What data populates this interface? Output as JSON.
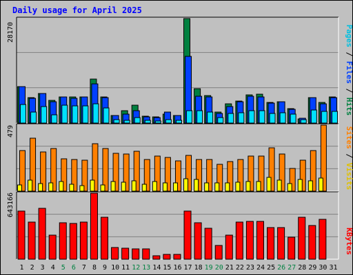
{
  "chart_data": [
    {
      "type": "bar",
      "title": "Daily usage for April 2025",
      "categories": [
        "1",
        "2",
        "3",
        "4",
        "5",
        "6",
        "7",
        "8",
        "9",
        "10",
        "11",
        "12",
        "13",
        "14",
        "15",
        "16",
        "17",
        "18",
        "19",
        "20",
        "21",
        "22",
        "23",
        "24",
        "25",
        "26",
        "27",
        "28",
        "29",
        "30",
        "31"
      ],
      "weekend_days": [
        "5",
        "6",
        "12",
        "13",
        "19",
        "20",
        "26",
        "27"
      ],
      "ylabel_parts": [
        "Pages",
        "Files",
        "Hits"
      ],
      "ymax_label": "28170",
      "ylim": [
        0,
        28170
      ],
      "grid": true,
      "series": [
        {
          "name": "Hits",
          "color": "#008040",
          "values": [
            9800,
            6800,
            7900,
            6100,
            7000,
            7000,
            7000,
            11800,
            7000,
            2100,
            3400,
            4800,
            1900,
            1700,
            2500,
            2100,
            28170,
            9300,
            7400,
            2900,
            5100,
            6000,
            7600,
            7800,
            5500,
            5800,
            3800,
            1200,
            6800,
            5500,
            7000
          ]
        },
        {
          "name": "Files",
          "color": "#0040ff",
          "values": [
            9800,
            6600,
            7900,
            5800,
            7000,
            6700,
            7000,
            10600,
            6800,
            2000,
            2500,
            3300,
            1700,
            1500,
            2900,
            2100,
            18000,
            7200,
            7100,
            2600,
            4400,
            5700,
            7300,
            7000,
            5300,
            5700,
            3700,
            1300,
            6800,
            5200,
            6800
          ]
        },
        {
          "name": "Pages",
          "color": "#00e0ff",
          "values": [
            5000,
            2900,
            4500,
            2200,
            4900,
            4600,
            4600,
            5100,
            4000,
            900,
            700,
            1500,
            700,
            600,
            900,
            700,
            3300,
            3300,
            3000,
            1500,
            2600,
            2700,
            3300,
            3400,
            2600,
            2700,
            2400,
            1000,
            3600,
            3200,
            3200
          ]
        }
      ]
    },
    {
      "type": "bar",
      "categories": [
        "1",
        "2",
        "3",
        "4",
        "5",
        "6",
        "7",
        "8",
        "9",
        "10",
        "11",
        "12",
        "13",
        "14",
        "15",
        "16",
        "17",
        "18",
        "19",
        "20",
        "21",
        "22",
        "23",
        "24",
        "25",
        "26",
        "27",
        "28",
        "29",
        "30",
        "31"
      ],
      "ylabel_parts": [
        "Sites",
        "Visits"
      ],
      "ymax_label": "479",
      "ylim": [
        0,
        479
      ],
      "grid": true,
      "series": [
        {
          "name": "Visits",
          "color": "#ff8000",
          "values": [
            295,
            385,
            285,
            310,
            235,
            230,
            225,
            345,
            310,
            275,
            270,
            290,
            230,
            255,
            245,
            220,
            260,
            230,
            230,
            195,
            215,
            230,
            255,
            255,
            315,
            270,
            165,
            225,
            295,
            479,
            0
          ]
        },
        {
          "name": "Sites",
          "color": "#ffff00",
          "values": [
            45,
            78,
            55,
            62,
            68,
            48,
            38,
            78,
            45,
            72,
            65,
            75,
            48,
            72,
            60,
            58,
            92,
            85,
            62,
            58,
            62,
            65,
            68,
            72,
            98,
            80,
            55,
            85,
            75,
            95,
            0
          ]
        }
      ]
    },
    {
      "type": "bar",
      "categories": [
        "1",
        "2",
        "3",
        "4",
        "5",
        "6",
        "7",
        "8",
        "9",
        "10",
        "11",
        "12",
        "13",
        "14",
        "15",
        "16",
        "17",
        "18",
        "19",
        "20",
        "21",
        "22",
        "23",
        "24",
        "25",
        "26",
        "27",
        "28",
        "29",
        "30",
        "31"
      ],
      "ylabel": "KBytes",
      "ymax_label": "643166",
      "ylim": [
        0,
        643166
      ],
      "grid": true,
      "series": [
        {
          "name": "KBytes",
          "color": "#ff0000",
          "values": [
            466000,
            360000,
            497000,
            235000,
            354000,
            350000,
            360000,
            643166,
            410000,
            115000,
            108000,
            100000,
            100000,
            35000,
            48000,
            45000,
            466000,
            354000,
            300000,
            132000,
            232000,
            360000,
            370000,
            370000,
            310000,
            310000,
            216000,
            408000,
            327000,
            390000,
            0
          ]
        }
      ]
    }
  ]
}
